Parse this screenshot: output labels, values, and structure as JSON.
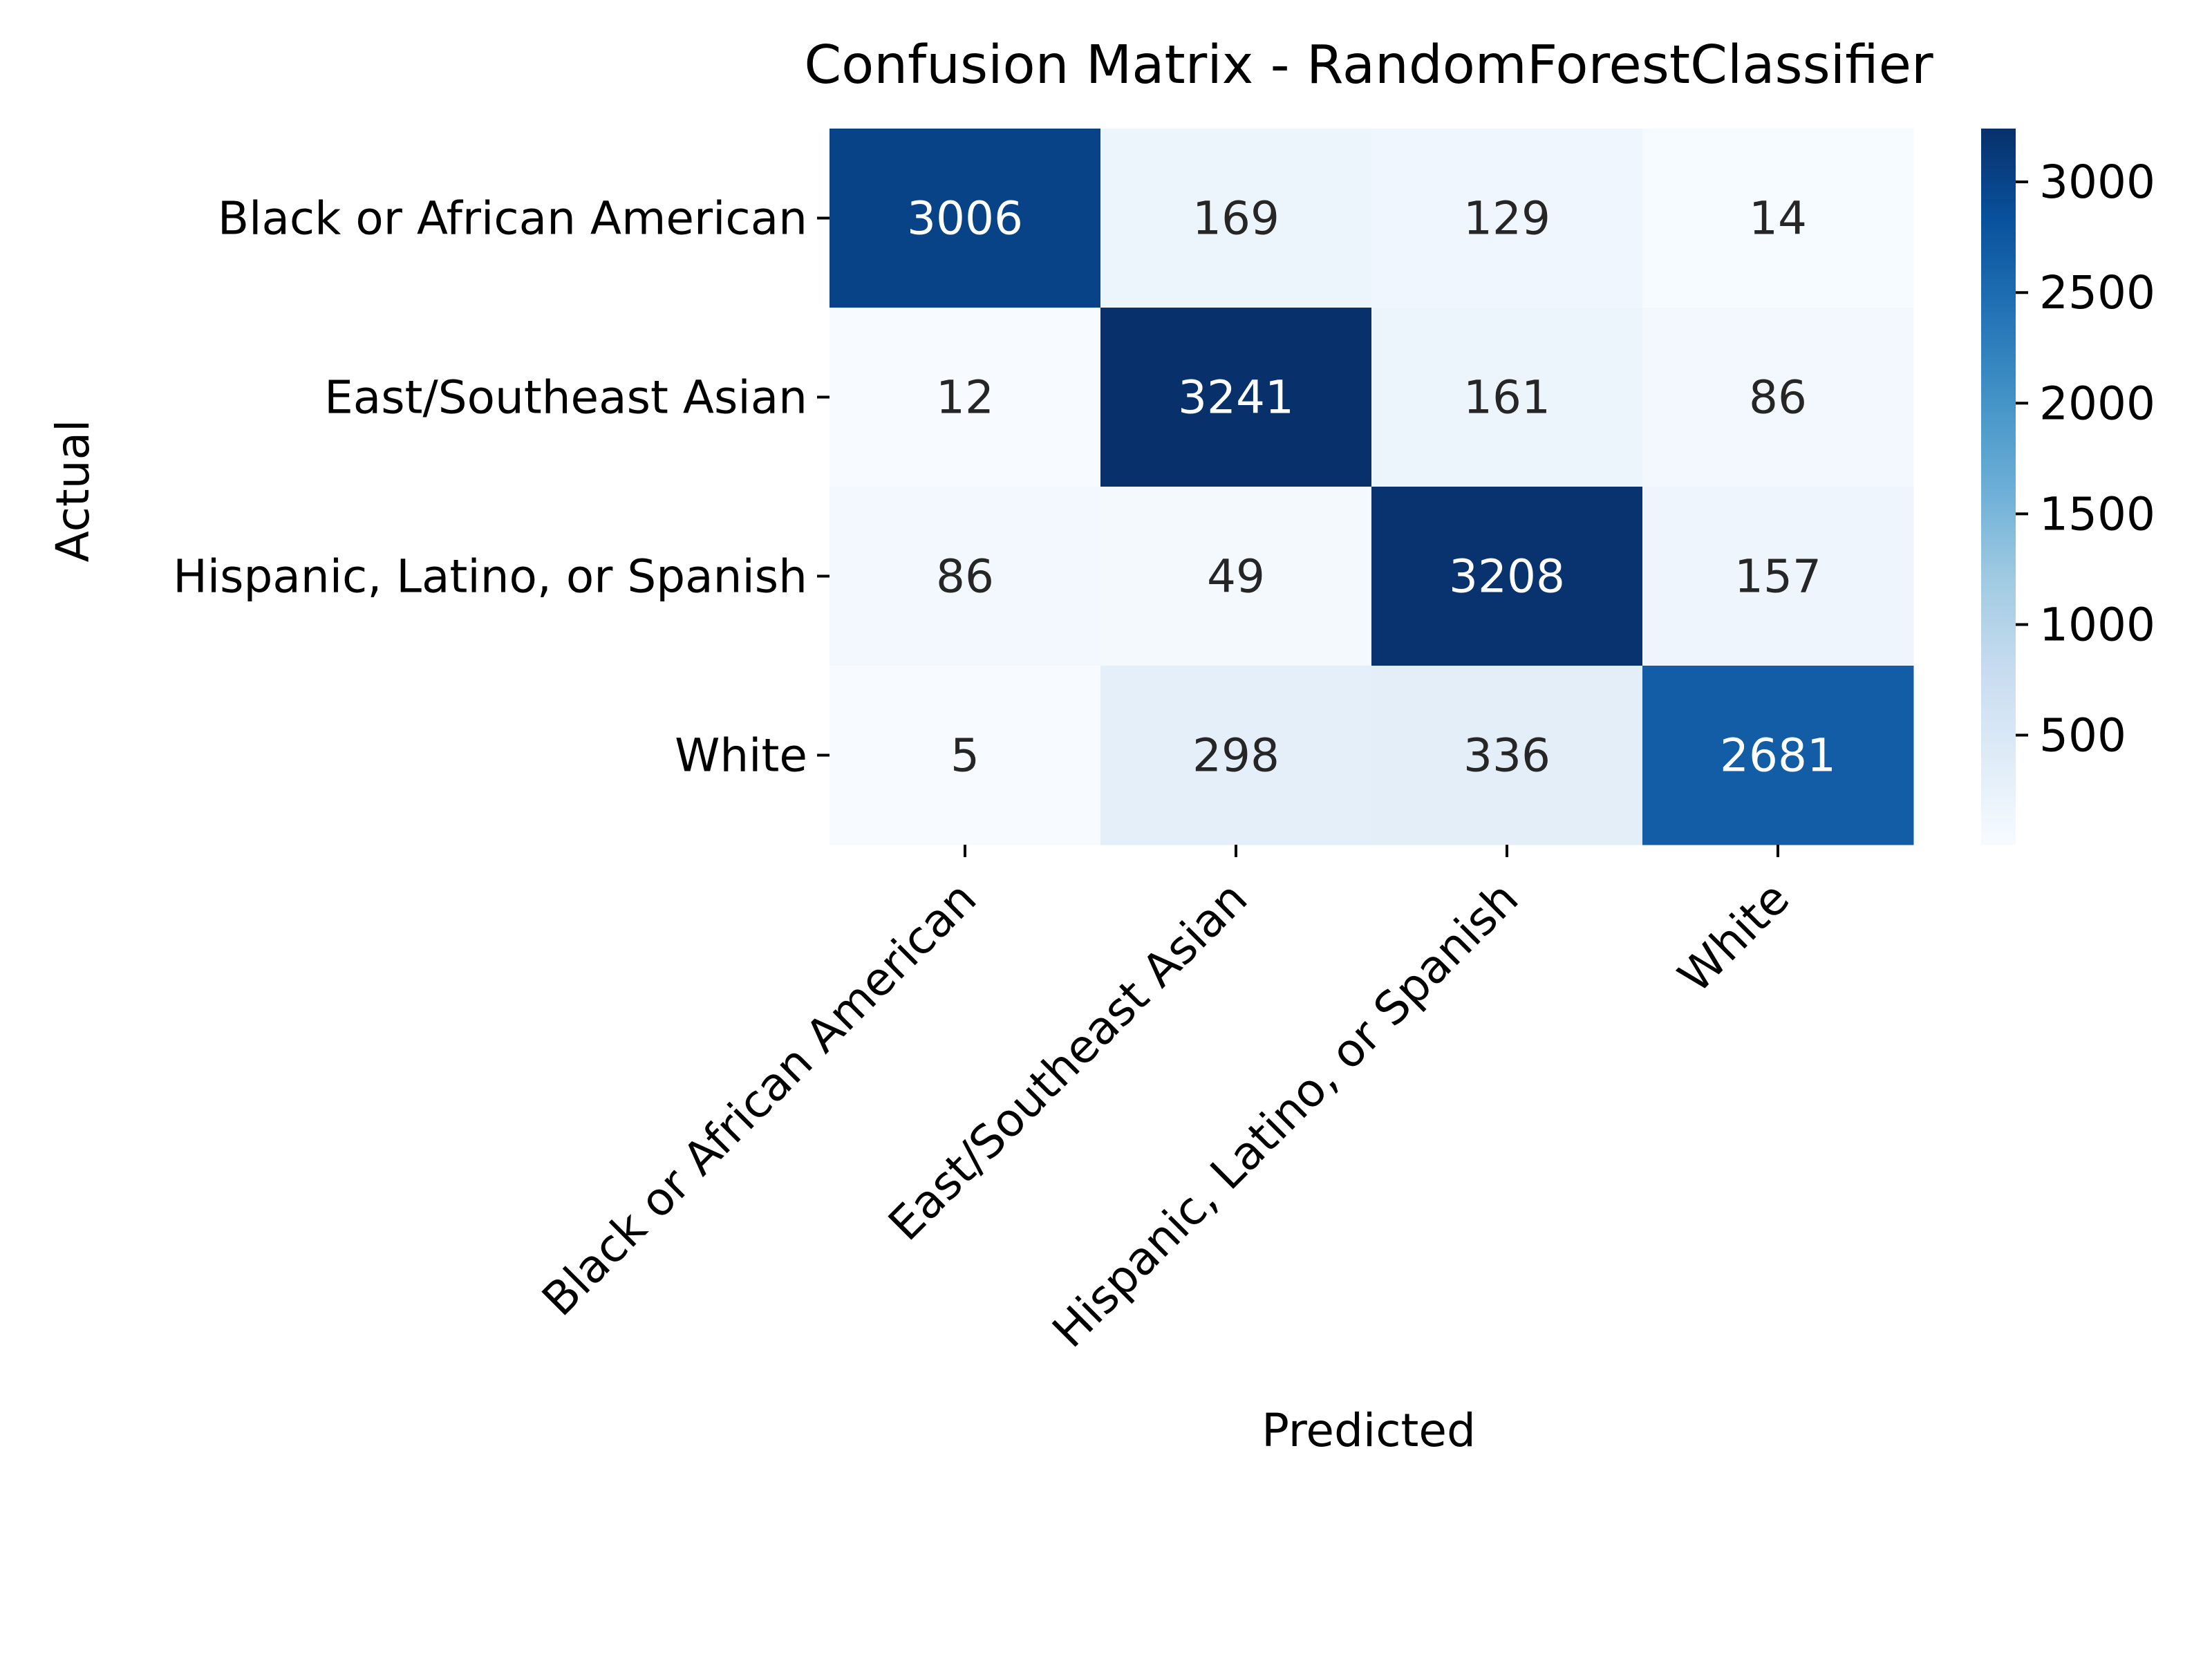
{
  "chart_data": {
    "type": "heatmap",
    "title": "Confusion Matrix - RandomForestClassifier",
    "xlabel": "Predicted",
    "ylabel": "Actual",
    "x_categories": [
      "Black or African American",
      "East/Southeast Asian",
      "Hispanic, Latino, or Spanish",
      "White"
    ],
    "y_categories": [
      "Black or African American",
      "East/Southeast Asian",
      "Hispanic, Latino, or Spanish",
      "White"
    ],
    "values": [
      [
        3006,
        169,
        129,
        14
      ],
      [
        12,
        3241,
        161,
        86
      ],
      [
        86,
        49,
        3208,
        157
      ],
      [
        5,
        298,
        336,
        2681
      ]
    ],
    "colormap": "Blues",
    "vmin": 5,
    "vmax": 3241,
    "colorbar_ticks": [
      500,
      1000,
      1500,
      2000,
      2500,
      3000
    ],
    "colorbar_tick_labels": [
      "500",
      "1000",
      "1500",
      "2000",
      "2500",
      "3000"
    ]
  }
}
